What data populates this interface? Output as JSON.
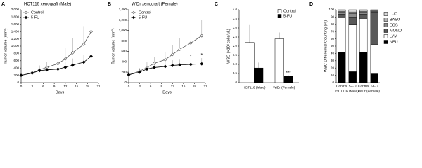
{
  "chart_data": [
    {
      "type": "line",
      "panel_label": "A",
      "title": "HCT116 xenograft (Male)",
      "x_label": "Days",
      "y_label": "Tumor volume (mm³)",
      "x": [
        0,
        3,
        5,
        7,
        10,
        12,
        14,
        17,
        19
      ],
      "xlim": [
        0,
        21
      ],
      "xticks": [
        0,
        3,
        6,
        9,
        12,
        15,
        18,
        21
      ],
      "ylim": [
        0,
        2000
      ],
      "yticks": [
        0,
        200,
        400,
        600,
        800,
        {
          "value": 1000,
          "label": "1,000"
        },
        {
          "value": 1200,
          "label": "1,200"
        },
        {
          "value": 1400,
          "label": "1,400"
        },
        {
          "value": 1600,
          "label": "1,600"
        },
        {
          "value": 1800,
          "label": "1,800"
        },
        {
          "value": 2000,
          "label": "2,000"
        }
      ],
      "legend": "upper left",
      "series": [
        {
          "name": "Control",
          "color": "#555555",
          "marker": "open",
          "values": [
            200,
            270,
            350,
            420,
            520,
            650,
            820,
            1050,
            1400
          ],
          "errors": [
            30,
            80,
            120,
            150,
            220,
            300,
            400,
            500,
            600
          ]
        },
        {
          "name": "5-FU",
          "color": "#000000",
          "marker": "filled",
          "values": [
            200,
            260,
            330,
            350,
            370,
            420,
            480,
            560,
            720
          ],
          "errors": [
            30,
            60,
            80,
            100,
            120,
            150,
            180,
            200,
            250
          ]
        }
      ]
    },
    {
      "type": "line",
      "panel_label": "B",
      "title": "WiDr xenograft (Female)",
      "x_label": "Days",
      "y_label": "Tumor volume (mm³)",
      "x": [
        0,
        3,
        5,
        7,
        10,
        12,
        14,
        17,
        20
      ],
      "xlim": [
        0,
        21
      ],
      "xticks": [
        0,
        3,
        6,
        9,
        12,
        15,
        18,
        21
      ],
      "ylim": [
        0,
        1400
      ],
      "yticks": [
        0,
        200,
        400,
        600,
        800,
        {
          "value": 1000,
          "label": "1,000"
        },
        {
          "value": 1200,
          "label": "1,200"
        },
        {
          "value": 1400,
          "label": "1,400"
        }
      ],
      "legend": "upper left",
      "series": [
        {
          "name": "Control",
          "color": "#555555",
          "marker": "open",
          "values": [
            150,
            220,
            290,
            370,
            440,
            540,
            640,
            760,
            900
          ],
          "errors": [
            20,
            60,
            100,
            120,
            150,
            180,
            220,
            250,
            300
          ]
        },
        {
          "name": "5-FU",
          "color": "#000000",
          "marker": "filled",
          "values": [
            150,
            200,
            260,
            290,
            310,
            330,
            340,
            350,
            360
          ],
          "errors": [
            20,
            40,
            60,
            80,
            90,
            100,
            100,
            110,
            110
          ]
        }
      ],
      "annotations": [
        {
          "text": "*",
          "x": 17,
          "y": 500
        },
        {
          "text": "*",
          "x": 20,
          "y": 520
        }
      ]
    },
    {
      "type": "bar",
      "panel_label": "C",
      "y_label": "WBC (×10³ cells/μL)",
      "categories": [
        "HCT116 (Male)",
        "WiDr (Female)"
      ],
      "ylim": [
        0,
        4
      ],
      "yticks": [
        0,
        0.5,
        {
          "value": 1,
          "label": "1.0"
        },
        1.5,
        {
          "value": 2,
          "label": "2.0"
        },
        2.5,
        {
          "value": 3,
          "label": "3.0"
        },
        3.5,
        {
          "value": 4,
          "label": "4.0"
        }
      ],
      "legend": "upper right",
      "series": [
        {
          "name": "Control",
          "color": "#ffffff",
          "values": [
            2.2,
            2.4
          ],
          "errors": [
            1.0,
            0.35
          ]
        },
        {
          "name": "5-FU",
          "color": "#000000",
          "values": [
            0.8,
            0.35
          ],
          "errors": [
            0.3,
            0.05
          ]
        }
      ],
      "annotations": [
        {
          "text": "***",
          "category": "WiDr (Female)"
        }
      ]
    },
    {
      "type": "stacked_bar",
      "panel_label": "D",
      "y_label": "WBC Differential Counting (%)",
      "categories": [
        "Control",
        "5-FU",
        "Control",
        "5-FU"
      ],
      "groups": [
        "HCT116 (Male)",
        "WiDr (Female)"
      ],
      "ylim": [
        0,
        100
      ],
      "yticks": [
        0,
        10,
        20,
        30,
        40,
        50,
        60,
        70,
        80,
        90,
        100
      ],
      "legend": "right",
      "series": [
        {
          "name": "NEU",
          "color": "#000000",
          "values": [
            42,
            15,
            42,
            12
          ]
        },
        {
          "name": "LYM",
          "color": "#ffffff",
          "values": [
            47,
            65,
            46,
            40
          ]
        },
        {
          "name": "MONO",
          "color": "#595959",
          "values": [
            5,
            10,
            6,
            45
          ]
        },
        {
          "name": "EOS",
          "color": "#8c8c8c",
          "values": [
            3,
            5,
            3,
            1
          ]
        },
        {
          "name": "BASO",
          "color": "#b5b5b5",
          "values": [
            1,
            2,
            1,
            1
          ]
        },
        {
          "name": "LUC",
          "color": "#d9d9d9",
          "values": [
            2,
            3,
            2,
            1
          ]
        }
      ]
    }
  ]
}
